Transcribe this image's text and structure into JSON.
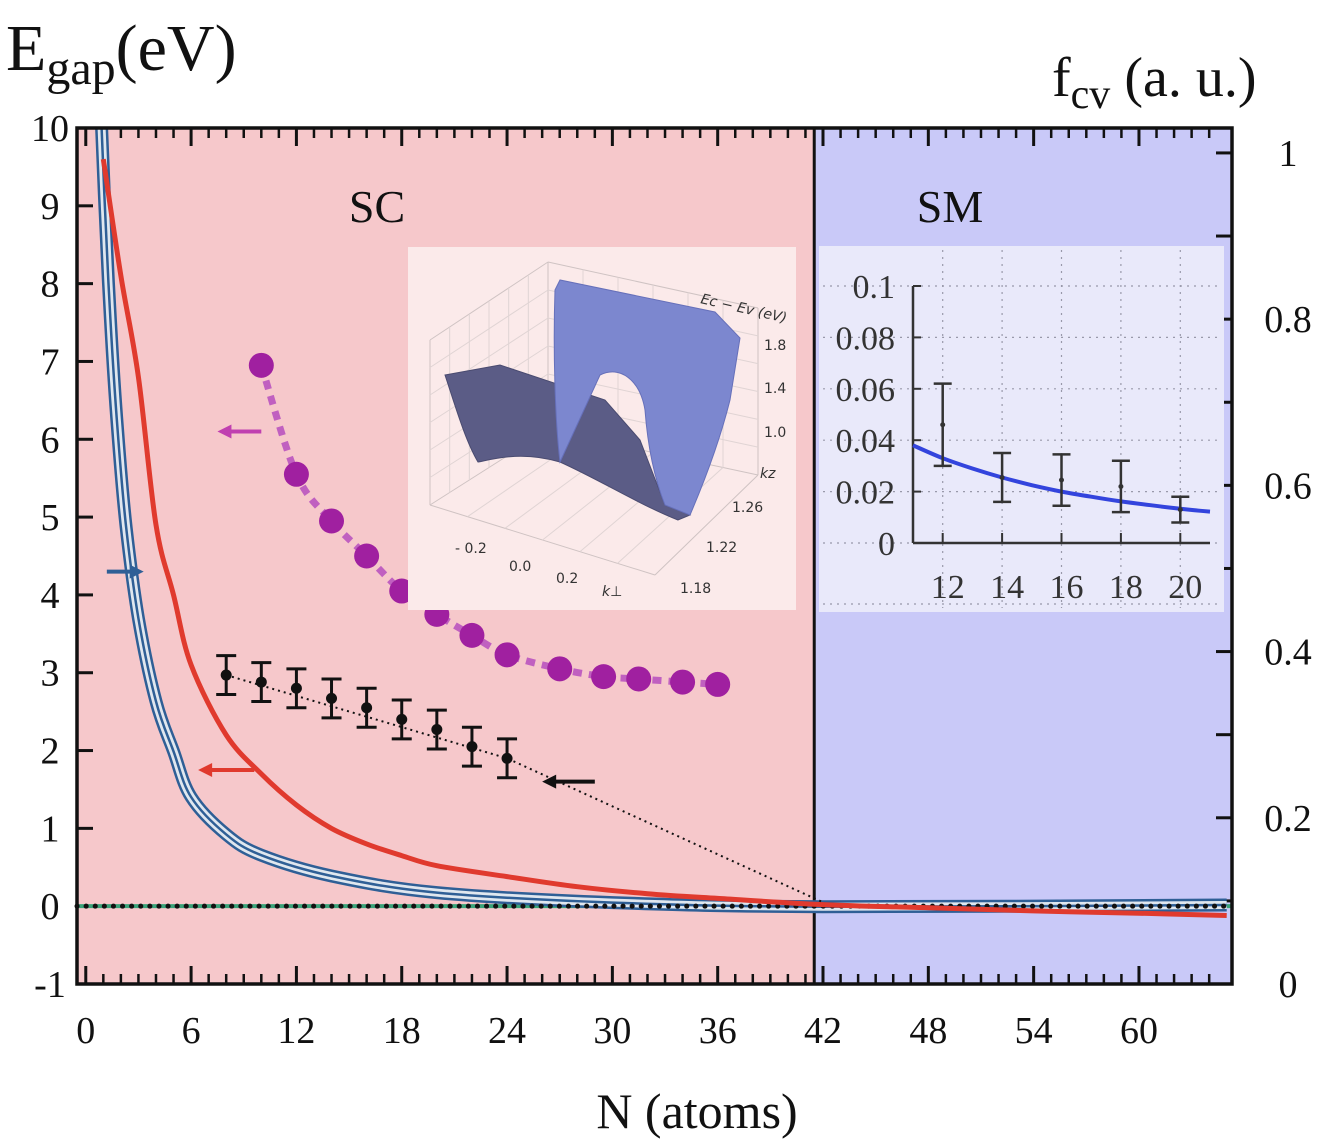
{
  "chart_data": {
    "type": "line",
    "title": "",
    "ylabel_left": {
      "main": "E",
      "sub": "gap",
      "suffix": "(eV)"
    },
    "ylabel_right": {
      "main": "f",
      "sub": "cv",
      "suffix": " (a. u.)"
    },
    "xlabel": "N (atoms)",
    "xlim": [
      -0.5,
      65.3
    ],
    "ylim": [
      -1,
      10
    ],
    "ylim_right": [
      0,
      1.03
    ],
    "x_ticks": [
      0,
      6,
      12,
      18,
      24,
      30,
      36,
      42,
      48,
      54,
      60
    ],
    "y_ticks": [
      10,
      9,
      8,
      7,
      6,
      5,
      4,
      3,
      2,
      1,
      0,
      -1
    ],
    "y_ticks_right": [
      "1",
      "0.8",
      "0.6",
      "0.4",
      "0.2",
      "0"
    ],
    "y_ticks_right_values": [
      1,
      0.8,
      0.6,
      0.4,
      0.2,
      0
    ],
    "regions": [
      {
        "label": "SC",
        "x_from": -0.5,
        "x_to": 41.5,
        "color": "#f6c8cb"
      },
      {
        "label": "SM",
        "x_from": 41.5,
        "x_to": 65.3,
        "color": "#c9c9f8"
      }
    ],
    "series": [
      {
        "name": "red-gap",
        "color": "#e03a2e",
        "x": [
          1,
          2,
          3,
          4,
          5,
          6,
          8,
          10,
          12,
          14,
          16,
          18,
          20,
          24,
          28,
          32,
          36,
          42,
          48,
          54,
          60,
          65
        ],
        "y": [
          9.6,
          8.1,
          6.8,
          4.9,
          4.0,
          3.1,
          2.2,
          1.7,
          1.3,
          1.0,
          0.8,
          0.65,
          0.52,
          0.38,
          0.25,
          0.16,
          0.1,
          0.02,
          -0.02,
          -0.06,
          -0.09,
          -0.12
        ]
      },
      {
        "name": "magenta-dots",
        "color": "#a020a0",
        "x": [
          10,
          12,
          14,
          16,
          18,
          20,
          22,
          24,
          27,
          29.5,
          31.5,
          34,
          36
        ],
        "y": [
          6.95,
          5.55,
          4.95,
          4.5,
          4.05,
          3.75,
          3.48,
          3.23,
          3.05,
          2.95,
          2.92,
          2.88,
          2.85
        ]
      },
      {
        "name": "black-errorbars",
        "color": "#111111",
        "x": [
          8,
          10,
          12,
          14,
          16,
          18,
          20,
          22,
          24
        ],
        "y": [
          2.97,
          2.88,
          2.8,
          2.67,
          2.55,
          2.4,
          2.27,
          2.05,
          1.9
        ],
        "err": [
          0.25,
          0.25,
          0.25,
          0.25,
          0.25,
          0.25,
          0.25,
          0.25,
          0.25
        ]
      },
      {
        "name": "black-dotted-fit",
        "color": "#111111",
        "x": [
          8,
          24,
          42
        ],
        "y": [
          2.97,
          1.9,
          0.05
        ]
      },
      {
        "name": "blue-fcv",
        "color": "#2f5f96",
        "axis": "right",
        "x": [
          0.9,
          1.1,
          1.4,
          1.8,
          2.3,
          3.0,
          4.0,
          5.0,
          6.0,
          8.0,
          10.0,
          14.0,
          20.0,
          30.0,
          42.0,
          65.0
        ],
        "y": [
          1.03,
          0.93,
          0.8,
          0.67,
          0.55,
          0.44,
          0.34,
          0.28,
          0.225,
          0.18,
          0.155,
          0.13,
          0.11,
          0.098,
          0.093,
          0.095
        ]
      },
      {
        "name": "black-dotted-zero",
        "color": "#111111",
        "x": [
          -0.5,
          65.3
        ],
        "y": [
          0,
          0
        ]
      },
      {
        "name": "green-zero",
        "color": "#3aa37a",
        "x": [
          -0.5,
          65.3
        ],
        "y": [
          0,
          0
        ]
      }
    ],
    "arrows": [
      {
        "name": "magenta-arrow-left",
        "x_from": 10,
        "x_to": 7.5,
        "y": 6.1,
        "color": "#c040b0"
      },
      {
        "name": "blue-arrow-right",
        "x_from": 1.2,
        "x_to": 3.3,
        "y": 4.3,
        "color": "#2f5f96"
      },
      {
        "name": "red-arrow-left",
        "x_from": 9.6,
        "x_to": 6.4,
        "y": 1.75,
        "color": "#e03a2e"
      },
      {
        "name": "black-arrow-left",
        "x_from": 29,
        "x_to": 26,
        "y": 1.6,
        "color": "#111111"
      }
    ],
    "insets": [
      {
        "name": "inset-3d",
        "type": "surface3d",
        "zlabel": "Ec − Ev (eV)",
        "z_ticks": [
          "1.8",
          "1.4",
          "1.0"
        ],
        "z_axis_label": "kz",
        "kz_ticks": [
          "1.26",
          "1.22",
          "1.18"
        ],
        "kperp_ticks": [
          "- 0.2",
          "0.0",
          "0.2"
        ],
        "kperp_label": "k⊥"
      },
      {
        "name": "inset-line",
        "type": "line",
        "xlim": [
          11,
          21
        ],
        "ylim": [
          0,
          0.1
        ],
        "x_ticks": [
          12,
          14,
          16,
          18,
          20
        ],
        "y_ticks": [
          "0.1",
          "0.08",
          "0.06",
          "0.04",
          "0.02",
          "0"
        ],
        "y_ticks_values": [
          0.1,
          0.08,
          0.06,
          0.04,
          0.02,
          0
        ],
        "curve_x": [
          11,
          12,
          13,
          14,
          15,
          16,
          17,
          18,
          19,
          20,
          21
        ],
        "curve_y": [
          0.038,
          0.033,
          0.029,
          0.0255,
          0.0225,
          0.02,
          0.018,
          0.0162,
          0.0147,
          0.0133,
          0.0122
        ],
        "curve_color": "#3344dd",
        "points_x": [
          12,
          14,
          16,
          18,
          20
        ],
        "points_y": [
          0.046,
          0.0255,
          0.0245,
          0.022,
          0.013
        ],
        "points_err": [
          0.016,
          0.0095,
          0.01,
          0.01,
          0.005
        ]
      }
    ]
  }
}
